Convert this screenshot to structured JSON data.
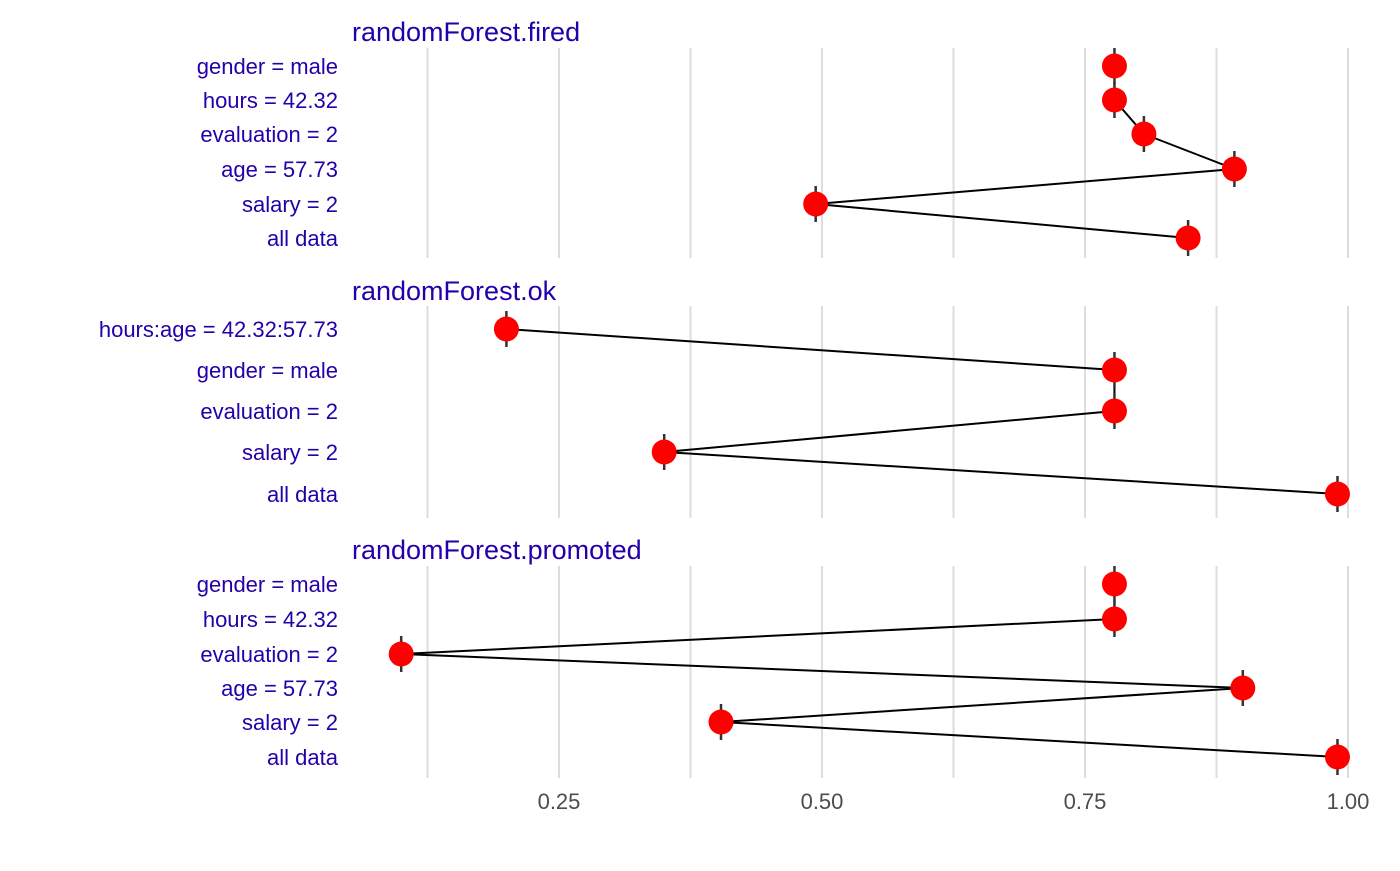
{
  "chart_data": {
    "type": "scatter",
    "description_style": "break-down waterfall (connected points per panel)",
    "x_ticks": [
      "0.25",
      "0.50",
      "0.75",
      "1.00"
    ],
    "x_tick_values": [
      0.25,
      0.5,
      0.75,
      1.0
    ],
    "xlim": [
      0.1,
      1.0
    ],
    "grid": true,
    "colors": {
      "text": "#2200aa",
      "point": "#ff0000",
      "line": "#000000",
      "grid": "#dddddd",
      "axis_text": "#2200aa"
    },
    "panels": [
      {
        "title": "randomForest.fired",
        "rows": [
          {
            "label": "gender = male",
            "value": 0.778
          },
          {
            "label": "hours = 42.32",
            "value": 0.778
          },
          {
            "label": "evaluation = 2",
            "value": 0.806
          },
          {
            "label": "age = 57.73",
            "value": 0.892
          },
          {
            "label": "salary = 2",
            "value": 0.494
          },
          {
            "label": "all data",
            "value": 0.848
          }
        ]
      },
      {
        "title": "randomForest.ok",
        "rows": [
          {
            "label": "hours:age = 42.32:57.73",
            "value": 0.2
          },
          {
            "label": "gender = male",
            "value": 0.778
          },
          {
            "label": "evaluation = 2",
            "value": 0.778
          },
          {
            "label": "salary = 2",
            "value": 0.35
          },
          {
            "label": "all data",
            "value": 0.99
          }
        ]
      },
      {
        "title": "randomForest.promoted",
        "rows": [
          {
            "label": "gender = male",
            "value": 0.778
          },
          {
            "label": "hours = 42.32",
            "value": 0.778
          },
          {
            "label": "evaluation = 2",
            "value": 0.1
          },
          {
            "label": "age = 57.73",
            "value": 0.9
          },
          {
            "label": "salary = 2",
            "value": 0.404
          },
          {
            "label": "all data",
            "value": 0.99
          }
        ]
      }
    ]
  }
}
